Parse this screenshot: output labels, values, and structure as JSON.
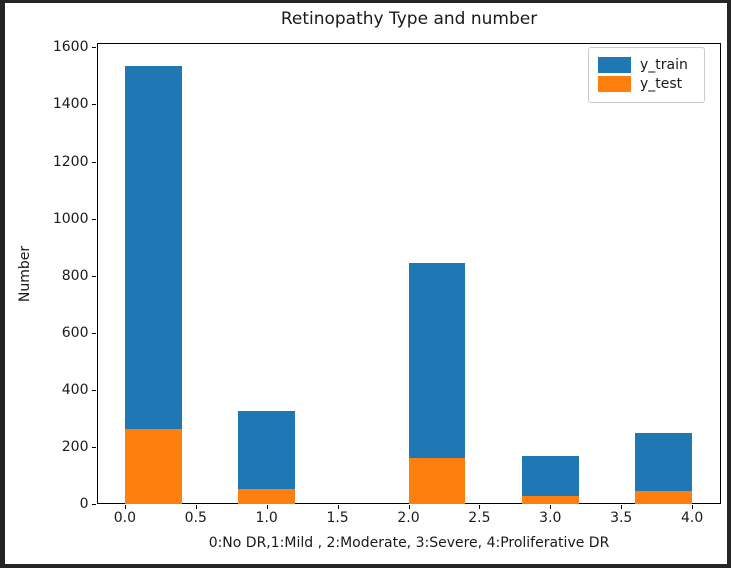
{
  "window": {
    "frame_color": "#242424",
    "canvas_color": "#ffffff"
  },
  "chart_data": {
    "type": "bar",
    "subtype": "histogram",
    "title": "Retinopathy Type and number",
    "x_axis": {
      "label": "0:No DR,1:Mild , 2:Moderate, 3:Severe, 4:Proliferative DR",
      "range": [
        -0.2,
        4.2
      ],
      "ticks": [
        {
          "v": 0.0,
          "label": "0.0"
        },
        {
          "v": 0.5,
          "label": "0.5"
        },
        {
          "v": 1.0,
          "label": "1.0"
        },
        {
          "v": 1.5,
          "label": "1.5"
        },
        {
          "v": 2.0,
          "label": "2.0"
        },
        {
          "v": 2.5,
          "label": "2.5"
        },
        {
          "v": 3.0,
          "label": "3.0"
        },
        {
          "v": 3.5,
          "label": "3.5"
        },
        {
          "v": 4.0,
          "label": "4.0"
        }
      ]
    },
    "y_axis": {
      "label": "Number",
      "range": [
        0,
        1615
      ],
      "ticks": [
        {
          "v": 0,
          "label": "0"
        },
        {
          "v": 200,
          "label": "200"
        },
        {
          "v": 400,
          "label": "400"
        },
        {
          "v": 600,
          "label": "600"
        },
        {
          "v": 800,
          "label": "800"
        },
        {
          "v": 1000,
          "label": "1000"
        },
        {
          "v": 1200,
          "label": "1200"
        },
        {
          "v": 1400,
          "label": "1400"
        },
        {
          "v": 1600,
          "label": "1600"
        }
      ]
    },
    "categories": [
      "0: No DR",
      "1: Mild",
      "2: Moderate",
      "3: Severe",
      "4: Proliferative DR"
    ],
    "bar_x_spans": [
      [
        0.0,
        0.4
      ],
      [
        0.8,
        1.2
      ],
      [
        2.0,
        2.4
      ],
      [
        2.8,
        3.2
      ],
      [
        3.6,
        4.0
      ]
    ],
    "series": [
      {
        "name": "y_train",
        "color": "#1f77b4",
        "values": [
          1535,
          325,
          845,
          170,
          250
        ]
      },
      {
        "name": "y_test",
        "color": "#ff7f0e",
        "values": [
          265,
          52,
          162,
          29,
          48
        ]
      }
    ],
    "legend": {
      "position": "upper-right",
      "items": [
        {
          "label": "y_train",
          "color": "#1f77b4"
        },
        {
          "label": "y_test",
          "color": "#ff7f0e"
        }
      ]
    },
    "grid": false,
    "render_mode": "both series start at zero baseline; y_test drawn in front of y_train"
  }
}
